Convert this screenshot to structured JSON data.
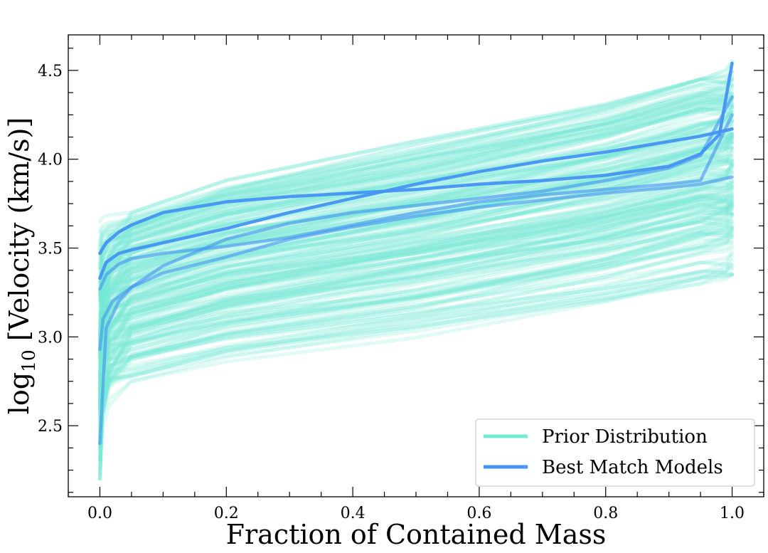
{
  "chart_data": {
    "type": "line",
    "title": "",
    "xlabel": "Fraction of Contained Mass",
    "ylabel": {
      "prefix": "log",
      "subscript": "10",
      "suffix": " [Velocity (km/s)]"
    },
    "xlim": [
      -0.05,
      1.05
    ],
    "ylim": [
      2.1,
      4.7
    ],
    "x_ticks": [
      0.0,
      0.2,
      0.4,
      0.6,
      0.8,
      1.0
    ],
    "x_tick_labels": [
      "0.0",
      "0.2",
      "0.4",
      "0.6",
      "0.8",
      "1.0"
    ],
    "y_ticks": [
      2.5,
      3.0,
      3.5,
      4.0,
      4.5
    ],
    "y_tick_labels": [
      "2.5",
      "3.0",
      "3.5",
      "4.0",
      "4.5"
    ],
    "grid": false,
    "legend": {
      "placement": "bottom-right",
      "entries": [
        {
          "label": "Prior Distribution",
          "color": "#75e8d7"
        },
        {
          "label": "Best Match Models",
          "color": "#4593f2"
        }
      ]
    },
    "prior_distribution": {
      "color": "#75e8d7",
      "count": 200,
      "start_value_range": [
        2.2,
        3.7
      ],
      "value_at_0.05": [
        2.75,
        3.7
      ],
      "value_at_0.95": [
        3.3,
        4.45
      ],
      "end_value_range": [
        3.35,
        4.55
      ]
    },
    "series": [
      {
        "name": "Best Match Models",
        "color": "#4593f2",
        "x": [
          0.0,
          0.01,
          0.03,
          0.05,
          0.1,
          0.2,
          0.3,
          0.4,
          0.5,
          0.6,
          0.7,
          0.8,
          0.9,
          0.95,
          0.98,
          1.0
        ],
        "y": [
          3.47,
          3.53,
          3.59,
          3.63,
          3.7,
          3.76,
          3.79,
          3.81,
          3.83,
          3.86,
          3.88,
          3.91,
          3.96,
          4.03,
          4.14,
          4.54
        ]
      },
      {
        "name": "Best Match Models",
        "color": "#4593f2",
        "x": [
          0.0,
          0.01,
          0.03,
          0.05,
          0.1,
          0.2,
          0.3,
          0.4,
          0.5,
          0.6,
          0.7,
          0.8,
          0.9,
          0.95,
          1.0
        ],
        "y": [
          3.33,
          3.42,
          3.47,
          3.49,
          3.53,
          3.61,
          3.7,
          3.78,
          3.86,
          3.93,
          3.99,
          4.04,
          4.1,
          4.13,
          4.17
        ]
      },
      {
        "name": "Best Match Models",
        "color": "#4593f2",
        "x": [
          0.0,
          0.005,
          0.02,
          0.05,
          0.1,
          0.2,
          0.3,
          0.4,
          0.5,
          0.6,
          0.7,
          0.8,
          0.9,
          0.95,
          1.0
        ],
        "y": [
          2.93,
          3.1,
          3.2,
          3.28,
          3.4,
          3.55,
          3.64,
          3.7,
          3.74,
          3.78,
          3.82,
          3.88,
          3.95,
          4.02,
          4.35
        ]
      },
      {
        "name": "Best Match Models",
        "color": "#4593f2",
        "x": [
          0.0,
          0.01,
          0.03,
          0.05,
          0.1,
          0.2,
          0.3,
          0.4,
          0.5,
          0.6,
          0.7,
          0.8,
          0.9,
          0.95,
          1.0
        ],
        "y": [
          3.27,
          3.35,
          3.41,
          3.44,
          3.47,
          3.51,
          3.56,
          3.63,
          3.7,
          3.76,
          3.8,
          3.83,
          3.86,
          3.88,
          4.25
        ]
      },
      {
        "name": "Best Match Models",
        "color": "#4593f2",
        "x": [
          0.0,
          0.01,
          0.03,
          0.05,
          0.1,
          0.2,
          0.3,
          0.4,
          0.5,
          0.6,
          0.7,
          0.8,
          0.9,
          0.95,
          1.0
        ],
        "y": [
          2.4,
          3.05,
          3.2,
          3.28,
          3.36,
          3.45,
          3.55,
          3.62,
          3.68,
          3.73,
          3.77,
          3.81,
          3.84,
          3.86,
          3.9
        ]
      }
    ]
  }
}
